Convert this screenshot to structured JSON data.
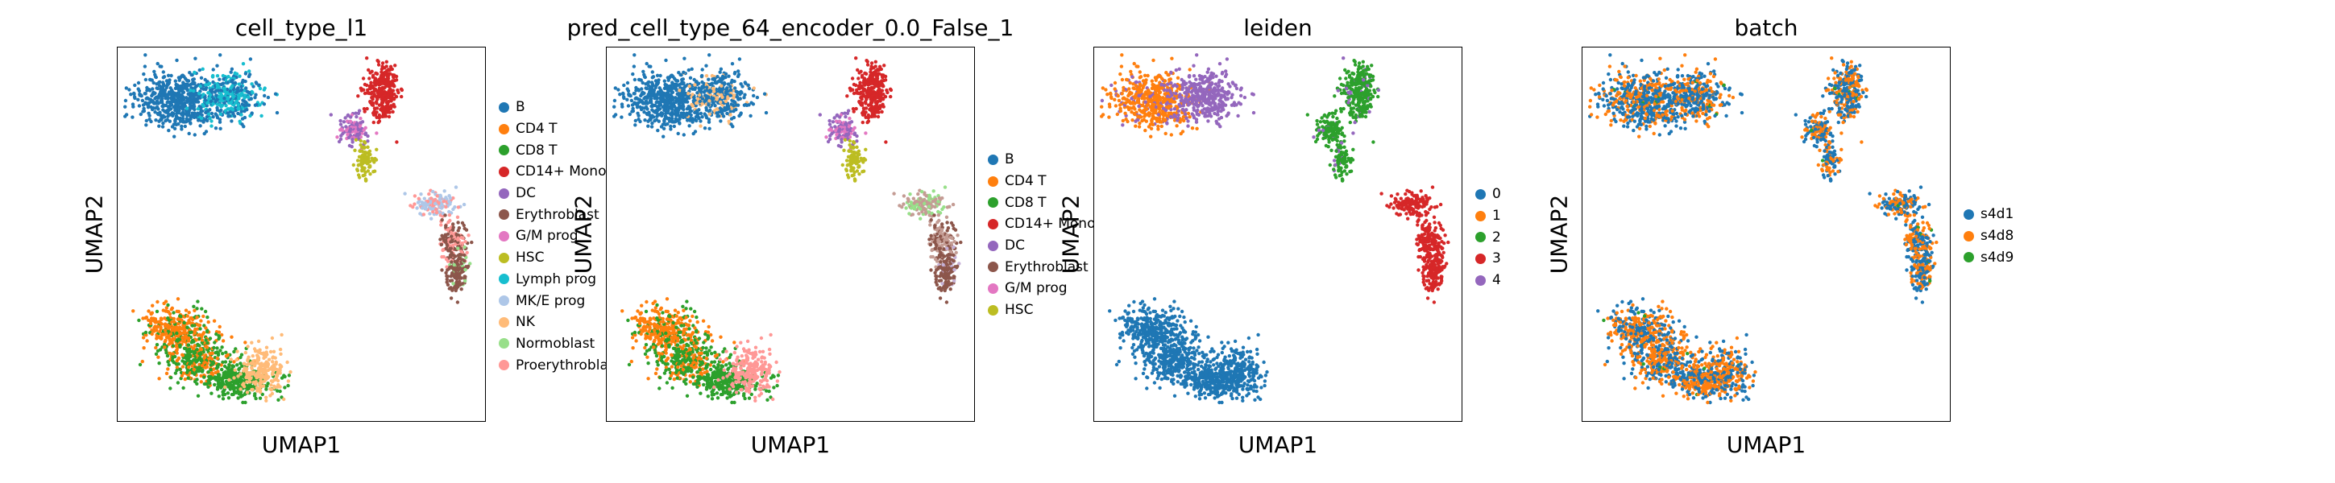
{
  "chart_data": [
    {
      "type": "scatter",
      "title": "cell_type_l1",
      "xlabel": "UMAP1",
      "ylabel": "UMAP2",
      "grid": false,
      "legend_position": "right-outside",
      "legend": [
        {
          "name": "B",
          "color": "#1f77b4"
        },
        {
          "name": "CD4 T",
          "color": "#ff7f0e"
        },
        {
          "name": "CD8 T",
          "color": "#2ca02c"
        },
        {
          "name": "CD14+ Mono",
          "color": "#d62728"
        },
        {
          "name": "DC",
          "color": "#9467bd"
        },
        {
          "name": "Erythroblast",
          "color": "#8c564b"
        },
        {
          "name": "G/M prog",
          "color": "#e377c2"
        },
        {
          "name": "HSC",
          "color": "#bcbd22"
        },
        {
          "name": "Lymph prog",
          "color": "#17becf"
        },
        {
          "name": "MK/E prog",
          "color": "#aec7e8"
        },
        {
          "name": "NK",
          "color": "#ffbb78"
        },
        {
          "name": "Normoblast",
          "color": "#98df8a"
        },
        {
          "name": "Proerythroblast",
          "color": "#ff9896"
        }
      ]
    },
    {
      "type": "scatter",
      "title": "pred_cell_type_64_encoder_0.0_False_1",
      "xlabel": "UMAP1",
      "ylabel": "UMAP2",
      "grid": false,
      "legend_position": "right-outside",
      "legend": [
        {
          "name": "B",
          "color": "#1f77b4"
        },
        {
          "name": "CD4 T",
          "color": "#ff7f0e"
        },
        {
          "name": "CD8 T",
          "color": "#2ca02c"
        },
        {
          "name": "CD14+ Mono",
          "color": "#d62728"
        },
        {
          "name": "DC",
          "color": "#9467bd"
        },
        {
          "name": "Erythroblast",
          "color": "#8c564b"
        },
        {
          "name": "G/M prog",
          "color": "#e377c2"
        },
        {
          "name": "HSC",
          "color": "#bcbd22"
        }
      ]
    },
    {
      "type": "scatter",
      "title": "leiden",
      "xlabel": "UMAP1",
      "ylabel": "UMAP2",
      "grid": false,
      "legend_position": "right-outside",
      "legend": [
        {
          "name": "0",
          "color": "#1f77b4"
        },
        {
          "name": "1",
          "color": "#ff7f0e"
        },
        {
          "name": "2",
          "color": "#2ca02c"
        },
        {
          "name": "3",
          "color": "#d62728"
        },
        {
          "name": "4",
          "color": "#9467bd"
        }
      ]
    },
    {
      "type": "scatter",
      "title": "batch",
      "xlabel": "UMAP1",
      "ylabel": "UMAP2",
      "grid": false,
      "legend_position": "right-outside",
      "legend": [
        {
          "name": "s4d1",
          "color": "#1f77b4"
        },
        {
          "name": "s4d8",
          "color": "#ff7f0e"
        },
        {
          "name": "s4d9",
          "color": "#2ca02c"
        }
      ]
    }
  ]
}
